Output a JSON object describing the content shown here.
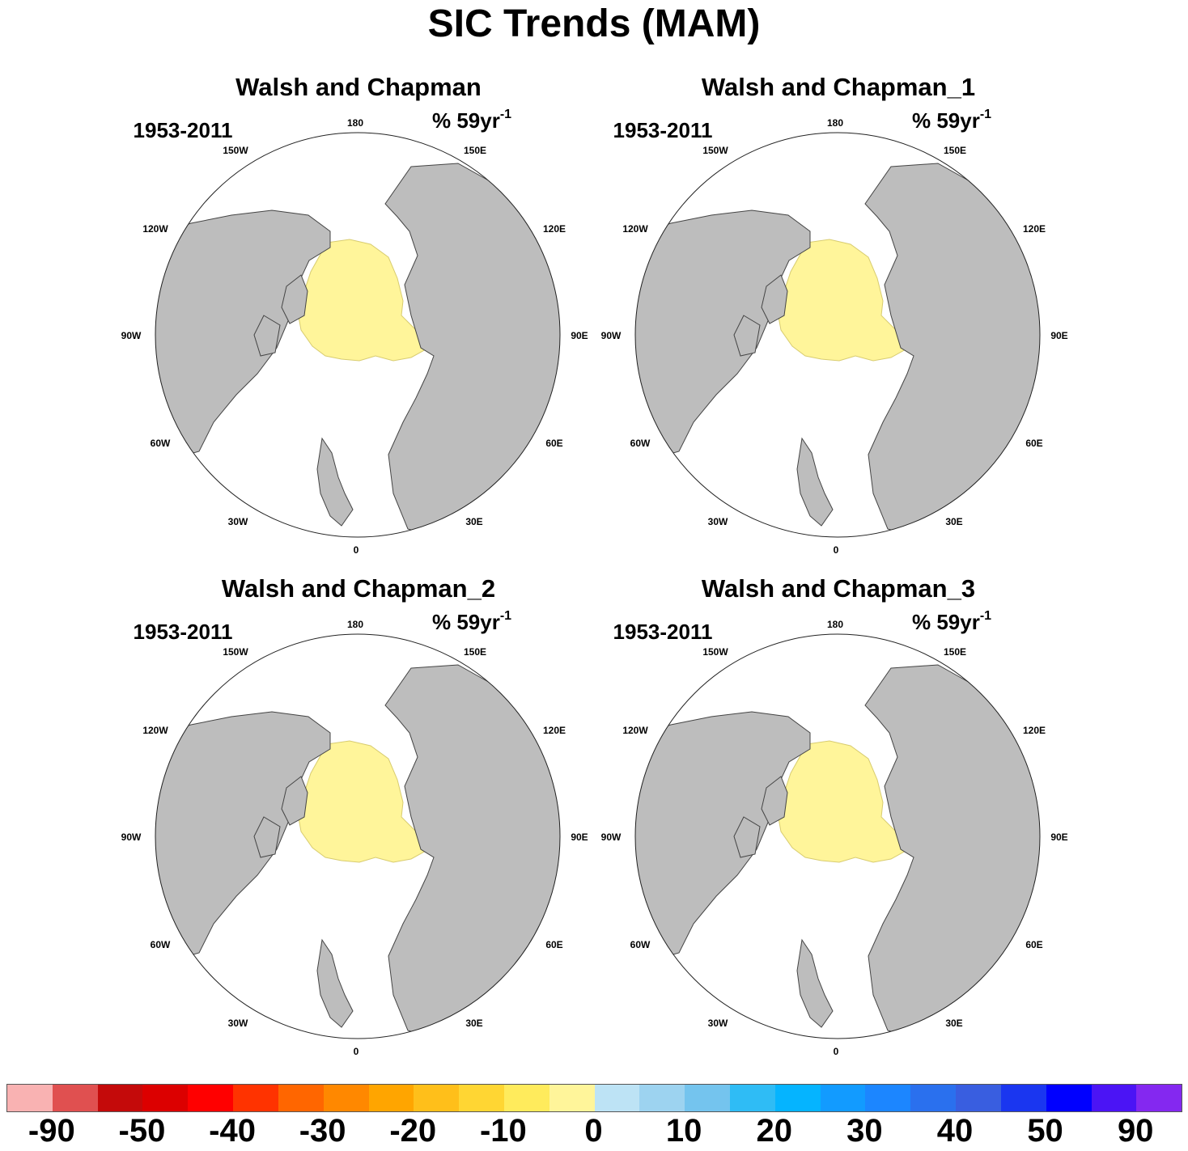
{
  "title": "SIC Trends (MAM)",
  "panels": [
    {
      "title": "Walsh and Chapman",
      "period": "1953-2011",
      "units": "% 59yr",
      "units_exp": "-1"
    },
    {
      "title": "Walsh and Chapman_1",
      "period": "1953-2011",
      "units": "% 59yr",
      "units_exp": "-1"
    },
    {
      "title": "Walsh and Chapman_2",
      "period": "1953-2011",
      "units": "% 59yr",
      "units_exp": "-1"
    },
    {
      "title": "Walsh and Chapman_3",
      "period": "1953-2011",
      "units": "% 59yr",
      "units_exp": "-1"
    }
  ],
  "map_labels": {
    "lon_180": "180",
    "lon_150w": "150W",
    "lon_150e": "150E",
    "lon_120w": "120W",
    "lon_120e": "120E",
    "lon_90w": "90W",
    "lon_90e": "90E",
    "lon_60w": "60W",
    "lon_60e": "60E",
    "lon_30w": "30W",
    "lon_30e": "30E",
    "lon_0": "0"
  },
  "colors": {
    "land": "#bdbdbd",
    "ocean": "#ffffff",
    "ice_no_trend": "#fff59a"
  },
  "colorbar": {
    "colors": [
      "#f9b2b2",
      "#e05050",
      "#c40a0a",
      "#dc0000",
      "#ff0000",
      "#ff3300",
      "#ff6600",
      "#ff8800",
      "#ffa500",
      "#ffbf1a",
      "#ffd633",
      "#ffeb5c",
      "#fff59a",
      "#bde3f5",
      "#9dd3f0",
      "#74c4ee",
      "#2fbcf5",
      "#05b4ff",
      "#129bff",
      "#1c86ff",
      "#2a70ee",
      "#395ee0",
      "#1a36f0",
      "#0000ff",
      "#4b14f5",
      "#8428f0"
    ],
    "labels": [
      "-90",
      "-50",
      "-40",
      "-30",
      "-20",
      "-10",
      "0",
      "10",
      "20",
      "30",
      "40",
      "50",
      "90"
    ]
  }
}
